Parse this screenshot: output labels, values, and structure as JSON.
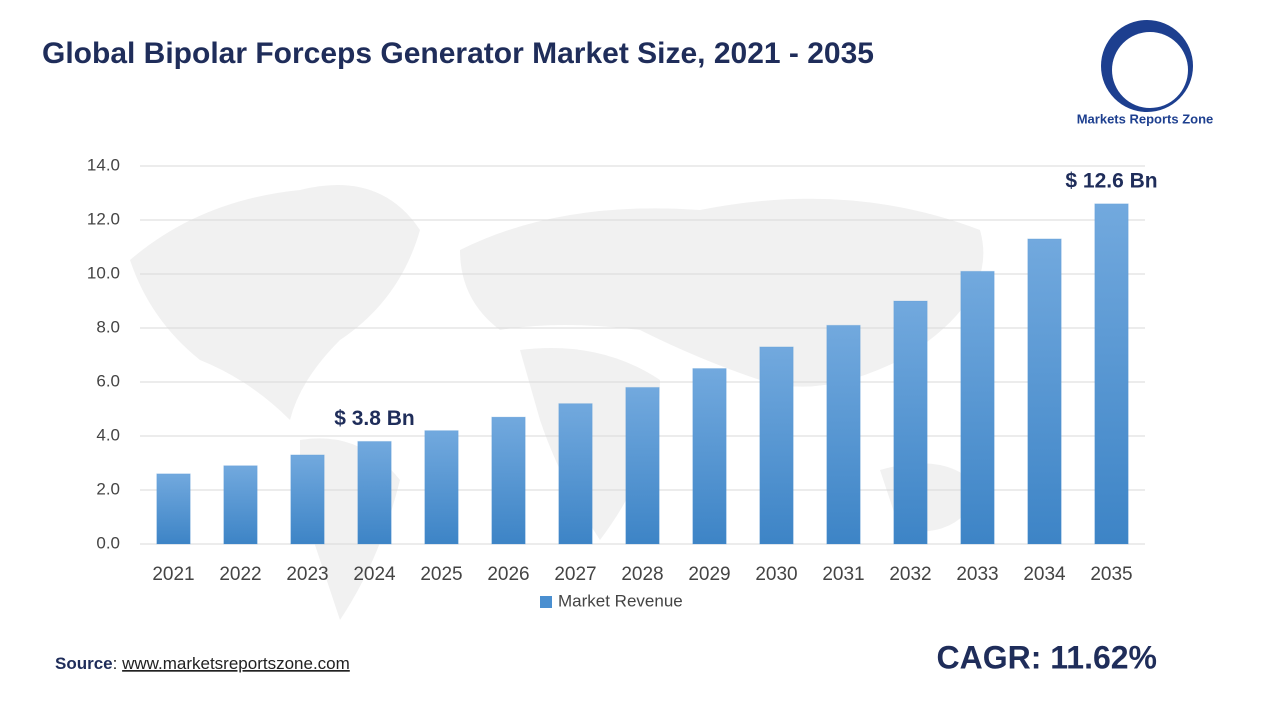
{
  "chart_data": {
    "type": "bar",
    "title": "Global Bipolar Forceps Generator Market Size, 2021 - 2035",
    "categories": [
      "2021",
      "2022",
      "2023",
      "2024",
      "2025",
      "2026",
      "2027",
      "2028",
      "2029",
      "2030",
      "2031",
      "2032",
      "2033",
      "2034",
      "2035"
    ],
    "series": [
      {
        "name": "Market Revenue",
        "color": "#4a8fd0",
        "values": [
          2.6,
          2.9,
          3.3,
          3.8,
          4.2,
          4.7,
          5.2,
          5.8,
          6.5,
          7.3,
          8.1,
          9.0,
          10.1,
          11.3,
          12.6
        ],
        "value_labels": [
          null,
          null,
          null,
          "$ 3.8 Bn",
          null,
          null,
          null,
          null,
          null,
          null,
          null,
          null,
          null,
          null,
          "$ 12.6 Bn"
        ]
      }
    ],
    "ylim": [
      0,
      14
    ],
    "yticks": [
      {
        "value": 0,
        "label": "0.0"
      },
      {
        "value": 2,
        "label": "2.0"
      },
      {
        "value": 4,
        "label": "4.0"
      },
      {
        "value": 6,
        "label": "6.0"
      },
      {
        "value": 8,
        "label": "8.0"
      },
      {
        "value": 10,
        "label": "10.0"
      },
      {
        "value": 12,
        "label": "12.0"
      },
      {
        "value": 14,
        "label": "14.0"
      }
    ],
    "grid": true,
    "legend": "bottom"
  },
  "source": {
    "label": "Source",
    "separator": ":",
    "url": "www.marketsreportszone.com"
  },
  "cagr": "CAGR: 11.62%",
  "logo": "Markets Reports Zone"
}
